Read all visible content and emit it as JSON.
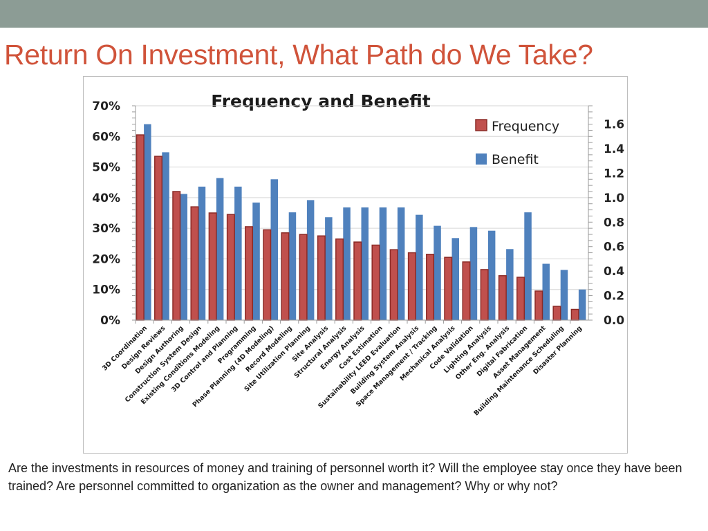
{
  "slide": {
    "title": "Return On Investment, What Path do We Take?",
    "body_text": "Are the investments in resources of money and training of personnel worth it?  Will the employee stay once they have been trained?  Are personnel committed to organization as the owner and management?  Why or why not?"
  },
  "colors": {
    "top_bar": "#8c9c95",
    "title": "#d0533a",
    "frequency_fill": "#c0504d",
    "frequency_stroke": "#8b2a26",
    "benefit": "#4f81bd"
  },
  "chart_data": {
    "type": "bar",
    "title": "Frequency and Benefit",
    "categories": [
      "3D Coordination",
      "Design Reviews",
      "Design Authoring",
      "Construction System Design",
      "Existing Conditions Modeling",
      "3D Control and Planning",
      "Programming",
      "Phase Planning (4D Modeling)",
      "Record Modeling",
      "Site Utilization Planning",
      "Site Analysis",
      "Structural Analysis",
      "Energy Analysis",
      "Cost Estimation",
      "Sustainability LEED Evaluation",
      "Building System Analysis",
      "Space Management / Tracking",
      "Mechanical Analysis",
      "Code Validation",
      "Lighting Analysis",
      "Other Eng. Analysis",
      "Digital Fabrication",
      "Asset Management",
      "Building Maintenance Scheduling",
      "Disaster Planning"
    ],
    "series": [
      {
        "name": "Frequency",
        "axis": "left",
        "values": [
          60.5,
          53.5,
          42,
          37,
          35,
          34.5,
          30.5,
          29.5,
          28.5,
          28,
          27.5,
          26.5,
          25.5,
          24.5,
          23,
          22,
          21.5,
          20.5,
          19,
          16.5,
          14.5,
          14,
          9.5,
          4.5,
          3.5
        ]
      },
      {
        "name": "Benefit",
        "axis": "right",
        "values": [
          1.6,
          1.37,
          1.03,
          1.09,
          1.16,
          1.09,
          0.96,
          1.15,
          0.88,
          0.98,
          0.84,
          0.92,
          0.92,
          0.92,
          0.92,
          0.86,
          0.77,
          0.67,
          0.76,
          0.73,
          0.58,
          0.88,
          0.46,
          0.41,
          0.25
        ]
      }
    ],
    "y_left": {
      "min": 0,
      "max": 70,
      "ticks": [
        "0%",
        "10%",
        "20%",
        "30%",
        "40%",
        "50%",
        "60%",
        "70%"
      ]
    },
    "y_right": {
      "min": 0,
      "max": 1.75,
      "ticks": [
        "0.0",
        "0.2",
        "0.4",
        "0.6",
        "0.8",
        "1.0",
        "1.2",
        "1.4",
        "1.6"
      ]
    },
    "legend_position": "top-right",
    "grid": true
  }
}
